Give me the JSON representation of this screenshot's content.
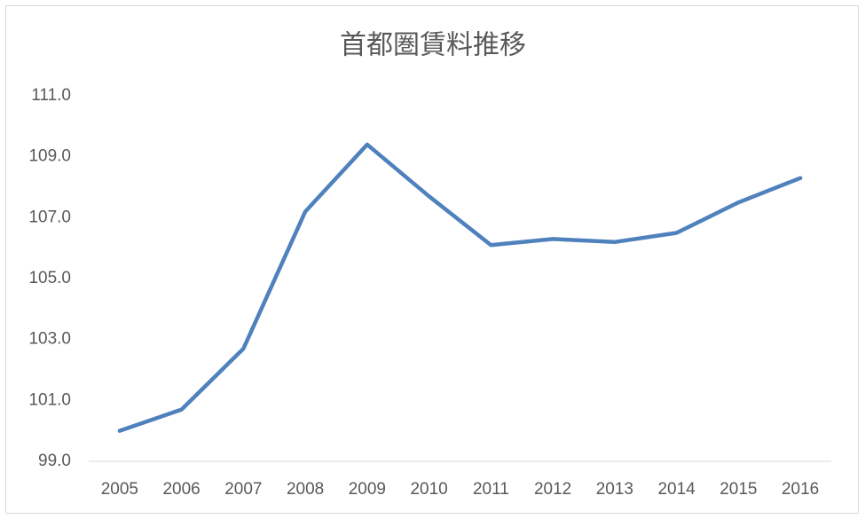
{
  "chart_data": {
    "type": "line",
    "title": "首都圏賃料推移",
    "categories": [
      "2005",
      "2006",
      "2007",
      "2008",
      "2009",
      "2010",
      "2011",
      "2012",
      "2013",
      "2014",
      "2015",
      "2016"
    ],
    "values": [
      100.0,
      100.7,
      102.7,
      107.2,
      109.4,
      107.7,
      106.1,
      106.3,
      106.2,
      106.5,
      107.5,
      108.3
    ],
    "color": "#4f81bd",
    "ylim": [
      99,
      111
    ],
    "yticks": [
      {
        "value": 99,
        "label": "99.0"
      },
      {
        "value": 101,
        "label": "101.0"
      },
      {
        "value": 103,
        "label": "103.0"
      },
      {
        "value": 105,
        "label": "105.0"
      },
      {
        "value": 107,
        "label": "107.0"
      },
      {
        "value": 109,
        "label": "109.0"
      },
      {
        "value": 111,
        "label": "111.0"
      }
    ],
    "grid": false
  }
}
